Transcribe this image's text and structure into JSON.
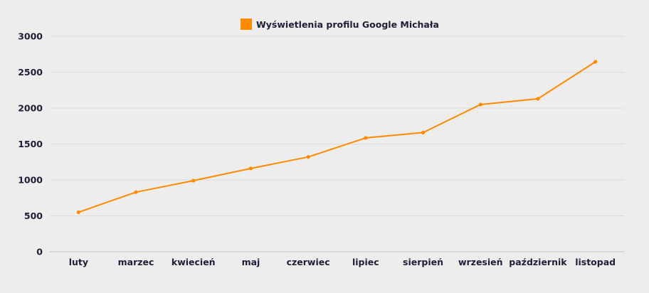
{
  "chart_data": {
    "type": "line",
    "title": "",
    "legend": [
      {
        "label": "Wyświetlenia profilu Google Michała",
        "color": "#ff8a00"
      }
    ],
    "legend_position": "top",
    "xlabel": "",
    "ylabel": "",
    "categories": [
      "luty",
      "marzec",
      "kwiecień",
      "maj",
      "czerwiec",
      "lipiec",
      "sierpień",
      "wrzesień",
      "październik",
      "listopad"
    ],
    "series": [
      {
        "name": "Wyświetlenia profilu Google Michała",
        "color": "#ff8a00",
        "values": [
          550,
          830,
          990,
          1160,
          1320,
          1585,
          1660,
          2050,
          2130,
          2645
        ]
      }
    ],
    "ylim": [
      0,
      3000
    ],
    "yticks": [
      0,
      500,
      1000,
      1500,
      2000,
      2500,
      3000
    ],
    "grid": true
  },
  "colors": {
    "background": "#ededed",
    "grid": "#dcdcdc",
    "axis": "#cfcfcf",
    "text": "#1e1e36",
    "series": "#ff8a00"
  }
}
